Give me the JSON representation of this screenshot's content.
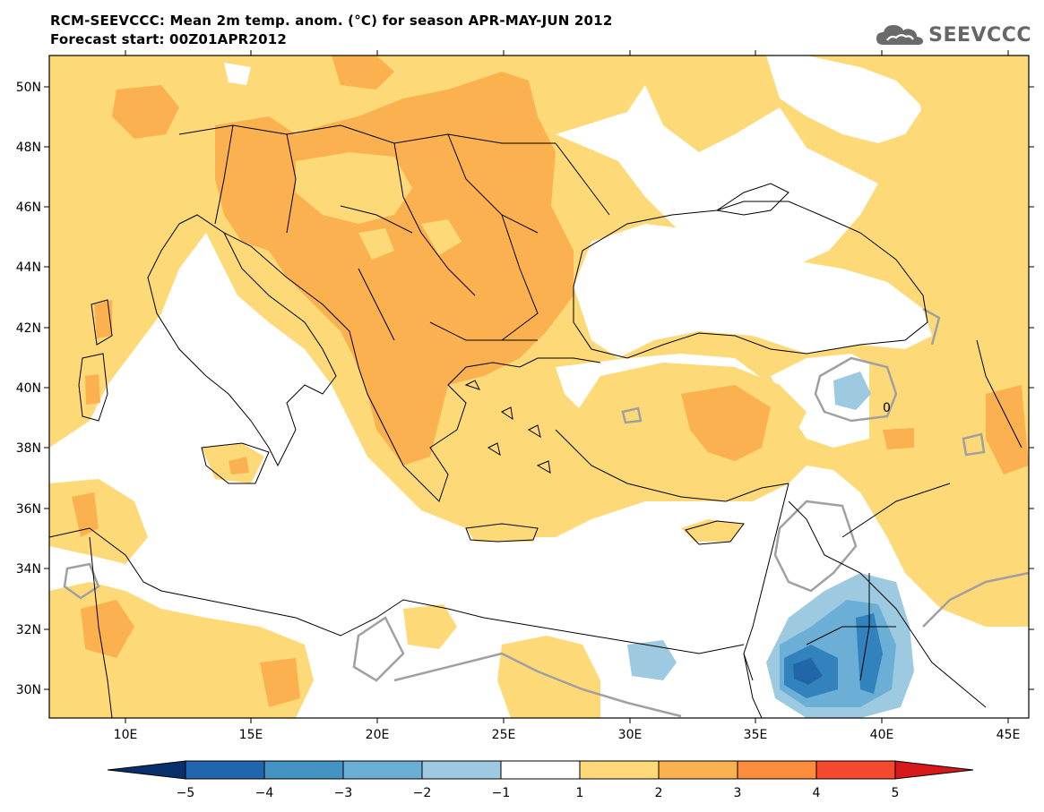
{
  "header": {
    "title_line1": "RCM-SEEVCCC: Mean 2m temp. anom. (°C) for season APR-MAY-JUN 2012",
    "title_line2": "Forecast start: 00Z01APR2012",
    "logo_text": "SEEVCCC",
    "logo_icon": "cloud-logo-icon"
  },
  "map": {
    "lon_ticks": [
      "10E",
      "15E",
      "20E",
      "25E",
      "30E",
      "35E",
      "40E",
      "45E"
    ],
    "lat_ticks": [
      "50N",
      "48N",
      "46N",
      "44N",
      "42N",
      "40N",
      "38N",
      "36N",
      "34N",
      "32N",
      "30N"
    ],
    "contour_label": "0",
    "colors": {
      "sea": "#ffffff",
      "anom_1_2": "#fdd978",
      "anom_2_3": "#fbb14f",
      "anom_neg_1_2": "#9ecae1",
      "anom_neg_2_3": "#6baed6",
      "anom_neg_3_4": "#3182bd",
      "anom_neg_4_5": "#2266aa",
      "zero_contour": "#a0a0a0",
      "border": "#000000"
    }
  },
  "colorbar": {
    "labels": [
      "−5",
      "−4",
      "−3",
      "−2",
      "−1",
      "1",
      "2",
      "3",
      "4",
      "5"
    ],
    "colors": [
      "#08306b",
      "#2166ac",
      "#4393c3",
      "#6baed6",
      "#9ecae1",
      "#ffffff",
      "#fdd978",
      "#fbb14f",
      "#fc8d3c",
      "#f4492f",
      "#d7191c"
    ]
  }
}
